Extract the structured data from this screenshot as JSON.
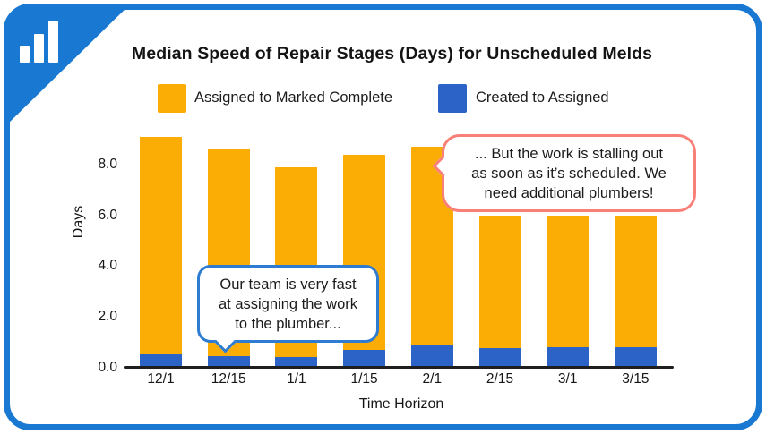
{
  "card": {
    "logo": "bar-chart-icon",
    "accent_blue": "#1878D2"
  },
  "chart_data": {
    "type": "bar",
    "stacked": true,
    "title": "Median Speed of Repair Stages (Days) for Unscheduled Melds",
    "categories": [
      "12/1",
      "12/15",
      "1/1",
      "1/15",
      "2/1",
      "2/15",
      "3/1",
      "3/15"
    ],
    "series": [
      {
        "name": "Created to Assigned",
        "position": "bottom",
        "color": "#2B63C6",
        "values": [
          0.5,
          0.45,
          0.4,
          0.7,
          0.9,
          0.75,
          0.8,
          0.8
        ]
      },
      {
        "name": "Assigned to Marked Complete",
        "position": "top",
        "color": "#FCAD05",
        "values": [
          8.6,
          8.15,
          7.5,
          7.7,
          7.8,
          5.25,
          5.2,
          5.2
        ]
      }
    ],
    "stack_totals": [
      9.1,
      8.6,
      7.9,
      8.4,
      8.7,
      6.0,
      6.0,
      6.0
    ],
    "xlabel": "Time Horizon",
    "ylabel": "Days",
    "y_ticks": [
      "0.0",
      "2.0",
      "4.0",
      "6.0",
      "8.0"
    ],
    "ylim": [
      0,
      9.5
    ],
    "grid": false,
    "legend_position": "top",
    "legend": [
      {
        "label": "Assigned to Marked Complete",
        "color": "#FCAD05"
      },
      {
        "label": "Created to Assigned",
        "color": "#2B63C6"
      }
    ],
    "annotations": [
      {
        "id": "callout-left",
        "text": "Our team is very fast\nat assigning the work\nto the plumber...",
        "border_color": "#2E7CD2",
        "tail": "bottom-left"
      },
      {
        "id": "callout-right",
        "text": "... But the work is stalling out\nas soon as it’s scheduled. We\nneed additional plumbers!",
        "border_color": "#F98078",
        "tail": "left"
      }
    ]
  }
}
